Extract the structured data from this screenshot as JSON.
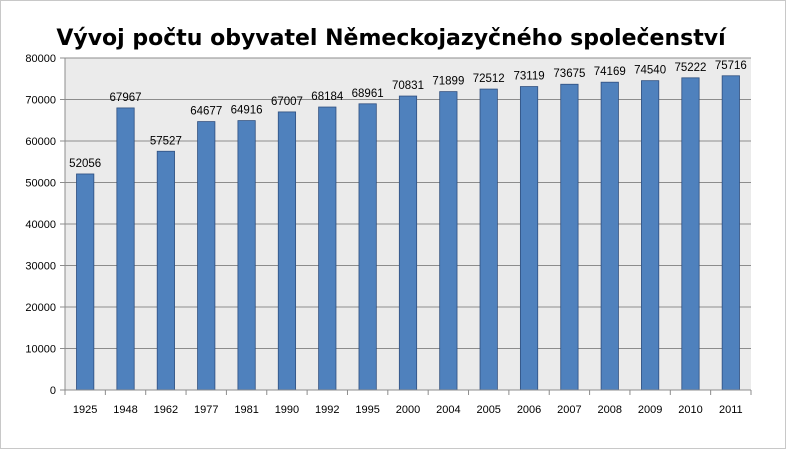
{
  "chart_data": {
    "type": "bar",
    "title": "Vývoj počtu obyvatel Německojazyčného společenství",
    "xlabel": "",
    "ylabel": "",
    "categories": [
      "1925",
      "1948",
      "1962",
      "1977",
      "1981",
      "1990",
      "1992",
      "1995",
      "2000",
      "2004",
      "2005",
      "2006",
      "2007",
      "2008",
      "2009",
      "2010",
      "2011"
    ],
    "values": [
      52056,
      67967,
      57527,
      64677,
      64916,
      67007,
      68184,
      68961,
      70831,
      71899,
      72512,
      73119,
      73675,
      74169,
      74540,
      75222,
      75716
    ],
    "data_labels": [
      "52056",
      "67967",
      "57527",
      "64677",
      "64916",
      "67007",
      "68184",
      "68961",
      "70831",
      "71899",
      "72512",
      "73119",
      "73675",
      "74169",
      "74540",
      "75222",
      "75716"
    ],
    "ylim": [
      0,
      80000
    ],
    "yticks": [
      0,
      10000,
      20000,
      30000,
      40000,
      50000,
      60000,
      70000,
      80000
    ],
    "ytick_labels": [
      "0",
      "10000",
      "20000",
      "30000",
      "40000",
      "50000",
      "60000",
      "70000",
      "80000"
    ],
    "grid": true,
    "legend": "none",
    "colors": {
      "bar_fill": "#4f81bd",
      "bar_stroke": "#2f4f7f",
      "plot_background": "#ebebeb",
      "gridline": "#8c8c8c"
    }
  }
}
